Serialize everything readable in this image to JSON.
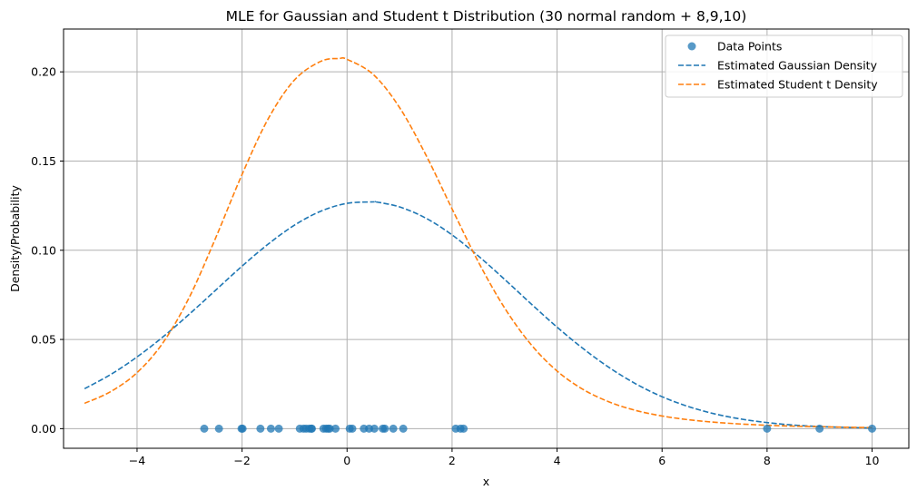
{
  "chart_data": {
    "type": "line",
    "title": "MLE for Gaussian and Student t Distribution (30 normal random + 8,9,10)",
    "xlabel": "x",
    "ylabel": "Density/Probability",
    "xlim": [
      -5.4,
      10.7
    ],
    "ylim": [
      -0.011,
      0.224
    ],
    "xticks": [
      -4,
      -2,
      0,
      2,
      4,
      6,
      8,
      10
    ],
    "yticks": [
      0.0,
      0.05,
      0.1,
      0.15,
      0.2
    ],
    "xtick_labels": [
      "−4",
      "−2",
      "0",
      "2",
      "4",
      "6",
      "8",
      "10"
    ],
    "ytick_labels": [
      "0.00",
      "0.05",
      "0.10",
      "0.15",
      "0.20"
    ],
    "grid": true,
    "legend_position": "top-right",
    "scatter": {
      "name": "Data Points",
      "color": "#1f77b4",
      "x": [
        -2.72,
        -2.44,
        -2.01,
        -1.99,
        -1.65,
        -1.45,
        -1.3,
        -0.9,
        -0.83,
        -0.78,
        -0.72,
        -0.68,
        -0.67,
        -0.45,
        -0.4,
        -0.36,
        -0.33,
        -0.22,
        0.05,
        0.1,
        0.32,
        0.42,
        0.52,
        0.68,
        0.72,
        0.88,
        1.07,
        2.07,
        2.16,
        2.22,
        8.0,
        9.0,
        10.0
      ],
      "y": [
        0,
        0,
        0,
        0,
        0,
        0,
        0,
        0,
        0,
        0,
        0,
        0,
        0,
        0,
        0,
        0,
        0,
        0,
        0,
        0,
        0,
        0,
        0,
        0,
        0,
        0,
        0,
        0,
        0,
        0,
        0,
        0,
        0
      ]
    },
    "series": [
      {
        "name": "Estimated Gaussian Density",
        "color": "#1f77b4",
        "style": "dashed",
        "x": [
          -5,
          -4.5,
          -4,
          -3.5,
          -3,
          -2.5,
          -2,
          -1.5,
          -1,
          -0.5,
          0,
          0.5,
          0.55,
          1,
          1.5,
          2,
          2.5,
          3,
          3.5,
          4,
          4.5,
          5,
          5.5,
          6,
          6.5,
          7,
          7.5,
          8,
          8.5,
          9,
          9.5,
          10
        ],
        "y": [
          0.0224,
          0.0304,
          0.0402,
          0.0516,
          0.0643,
          0.0777,
          0.0911,
          0.1035,
          0.1141,
          0.1219,
          0.1263,
          0.1271,
          0.1271,
          0.1243,
          0.118,
          0.1086,
          0.0968,
          0.0837,
          0.0701,
          0.0569,
          0.0448,
          0.0341,
          0.0251,
          0.0179,
          0.0124,
          0.0083,
          0.0054,
          0.0034,
          0.002,
          0.0012,
          0.0007,
          0.0004
        ]
      },
      {
        "name": "Estimated Student t Density",
        "color": "#ff7f0e",
        "style": "dashed",
        "x": [
          -5,
          -4.5,
          -4,
          -3.5,
          -3,
          -2.5,
          -2,
          -1.5,
          -1,
          -0.5,
          -0.15,
          0,
          0.5,
          1,
          1.5,
          2,
          2.5,
          3,
          3.5,
          4,
          4.5,
          5,
          5.5,
          6,
          6.5,
          7,
          7.5,
          8,
          8.5,
          9,
          9.5,
          10
        ],
        "y": [
          0.0142,
          0.0208,
          0.0314,
          0.0484,
          0.0739,
          0.1071,
          0.1425,
          0.1738,
          0.1955,
          0.2059,
          0.2075,
          0.207,
          0.1985,
          0.18,
          0.1535,
          0.1232,
          0.0935,
          0.0677,
          0.0473,
          0.0323,
          0.0219,
          0.0149,
          0.0102,
          0.0071,
          0.005,
          0.0036,
          0.0026,
          0.0019,
          0.0014,
          0.0011,
          0.0008,
          0.0006
        ]
      }
    ]
  }
}
